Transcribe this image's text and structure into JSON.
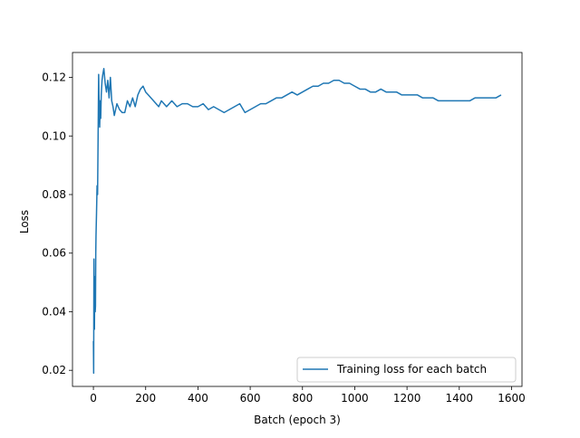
{
  "chart_data": {
    "type": "line",
    "xlabel": "Batch (epoch 3)",
    "ylabel": "Loss",
    "xlim": [
      -80,
      1640
    ],
    "ylim": [
      0.0145,
      0.1285
    ],
    "xticks": [
      0,
      200,
      400,
      600,
      800,
      1000,
      1200,
      1400,
      1600
    ],
    "yticks": [
      0.02,
      0.04,
      0.06,
      0.08,
      0.1,
      0.12
    ],
    "ytick_labels": [
      "0.02",
      "0.04",
      "0.06",
      "0.08",
      "0.10",
      "0.12"
    ],
    "grid": false,
    "legend_position": "lower-right",
    "color": "#1f77b4",
    "series": [
      {
        "name": "Training loss for each batch",
        "x": [
          0,
          1,
          2,
          3,
          4,
          5,
          6,
          7,
          8,
          9,
          10,
          12,
          14,
          16,
          18,
          20,
          22,
          24,
          26,
          28,
          30,
          33,
          36,
          40,
          45,
          50,
          55,
          60,
          65,
          70,
          75,
          80,
          90,
          100,
          110,
          120,
          130,
          140,
          150,
          160,
          170,
          180,
          190,
          200,
          210,
          220,
          230,
          240,
          250,
          260,
          270,
          280,
          290,
          300,
          320,
          340,
          360,
          380,
          400,
          420,
          440,
          460,
          480,
          500,
          520,
          540,
          560,
          580,
          600,
          620,
          640,
          660,
          680,
          700,
          720,
          740,
          760,
          780,
          800,
          820,
          840,
          860,
          880,
          900,
          920,
          940,
          960,
          980,
          1000,
          1020,
          1040,
          1060,
          1080,
          1100,
          1120,
          1140,
          1160,
          1180,
          1200,
          1220,
          1240,
          1260,
          1280,
          1300,
          1320,
          1340,
          1360,
          1380,
          1400,
          1420,
          1440,
          1460,
          1480,
          1500,
          1520,
          1540,
          1560
        ],
        "y": [
          0.03,
          0.019,
          0.058,
          0.041,
          0.034,
          0.048,
          0.052,
          0.04,
          0.042,
          0.06,
          0.066,
          0.074,
          0.083,
          0.08,
          0.1,
          0.121,
          0.11,
          0.103,
          0.112,
          0.106,
          0.114,
          0.119,
          0.121,
          0.123,
          0.118,
          0.115,
          0.119,
          0.113,
          0.12,
          0.112,
          0.11,
          0.107,
          0.111,
          0.109,
          0.108,
          0.108,
          0.112,
          0.11,
          0.113,
          0.11,
          0.114,
          0.116,
          0.117,
          0.115,
          0.114,
          0.113,
          0.112,
          0.111,
          0.11,
          0.112,
          0.111,
          0.11,
          0.111,
          0.112,
          0.11,
          0.111,
          0.111,
          0.11,
          0.11,
          0.111,
          0.109,
          0.11,
          0.109,
          0.108,
          0.109,
          0.11,
          0.111,
          0.108,
          0.109,
          0.11,
          0.111,
          0.111,
          0.112,
          0.113,
          0.113,
          0.114,
          0.115,
          0.114,
          0.115,
          0.116,
          0.117,
          0.117,
          0.118,
          0.118,
          0.119,
          0.119,
          0.118,
          0.118,
          0.117,
          0.116,
          0.116,
          0.115,
          0.115,
          0.116,
          0.115,
          0.115,
          0.115,
          0.114,
          0.114,
          0.114,
          0.114,
          0.113,
          0.113,
          0.113,
          0.112,
          0.112,
          0.112,
          0.112,
          0.112,
          0.112,
          0.112,
          0.113,
          0.113,
          0.113,
          0.113,
          0.113,
          0.114
        ]
      }
    ]
  }
}
